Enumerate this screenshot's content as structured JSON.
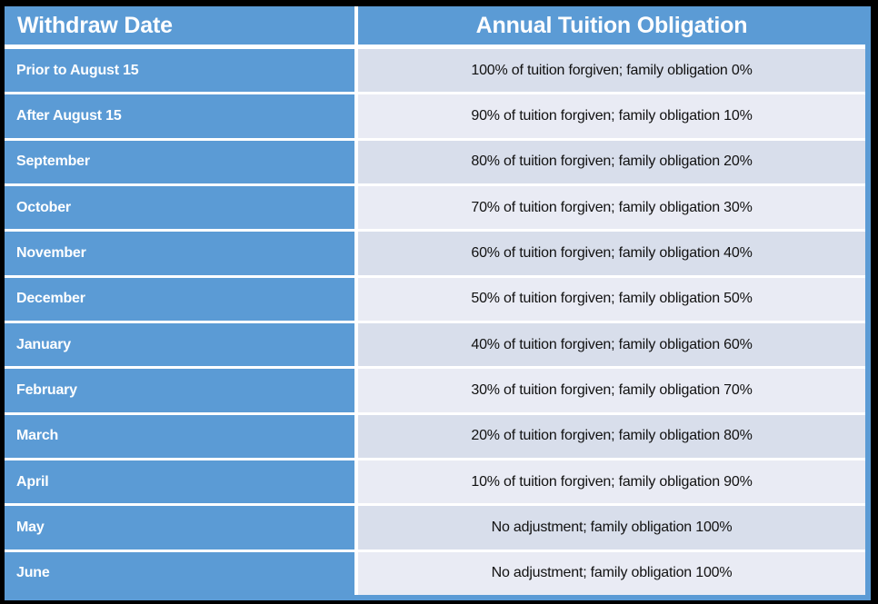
{
  "table": {
    "columns": [
      {
        "label": "Withdraw Date"
      },
      {
        "label": "Annual Tuition Obligation"
      }
    ],
    "rows": [
      {
        "withdraw_date": "Prior to August 15",
        "obligation": "100% of tuition forgiven; family obligation 0%"
      },
      {
        "withdraw_date": "After August 15",
        "obligation": "90% of tuition forgiven; family obligation 10%"
      },
      {
        "withdraw_date": "September",
        "obligation": "80% of tuition forgiven; family obligation 20%"
      },
      {
        "withdraw_date": "October",
        "obligation": "70% of tuition forgiven; family obligation 30%"
      },
      {
        "withdraw_date": "November",
        "obligation": "60% of tuition forgiven; family obligation 40%"
      },
      {
        "withdraw_date": "December",
        "obligation": "50% of tuition forgiven; family obligation 50%"
      },
      {
        "withdraw_date": "January",
        "obligation": "40% of tuition forgiven; family obligation 60%"
      },
      {
        "withdraw_date": "February",
        "obligation": "30% of tuition forgiven; family obligation 70%"
      },
      {
        "withdraw_date": "March",
        "obligation": "20% of tuition forgiven; family obligation 80%"
      },
      {
        "withdraw_date": "April",
        "obligation": "10% of tuition forgiven; family obligation 90%"
      },
      {
        "withdraw_date": "May",
        "obligation": "No adjustment; family obligation 100%"
      },
      {
        "withdraw_date": "June",
        "obligation": "No adjustment; family obligation 100%"
      }
    ]
  },
  "colors": {
    "frame_black": "#000000",
    "header_blue": "#5b9bd5",
    "band_dark": "#d8deeb",
    "band_light": "#e9ebf4",
    "separator_white": "#ffffff",
    "header_text": "#ffffff",
    "body_text": "#111111"
  }
}
